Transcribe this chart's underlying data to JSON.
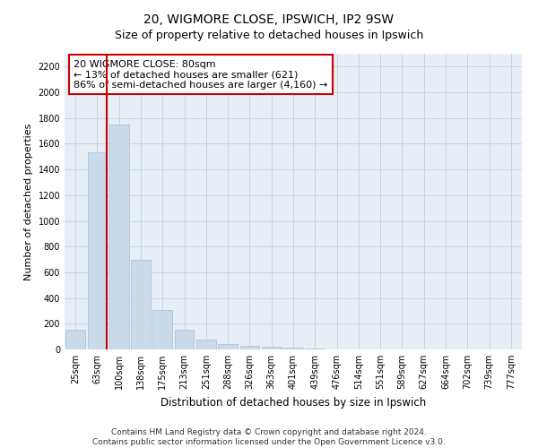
{
  "title": "20, WIGMORE CLOSE, IPSWICH, IP2 9SW",
  "subtitle": "Size of property relative to detached houses in Ipswich",
  "xlabel": "Distribution of detached houses by size in Ipswich",
  "ylabel": "Number of detached properties",
  "categories": [
    "25sqm",
    "63sqm",
    "100sqm",
    "138sqm",
    "175sqm",
    "213sqm",
    "251sqm",
    "288sqm",
    "326sqm",
    "363sqm",
    "401sqm",
    "439sqm",
    "476sqm",
    "514sqm",
    "551sqm",
    "589sqm",
    "627sqm",
    "664sqm",
    "702sqm",
    "739sqm",
    "777sqm"
  ],
  "values": [
    150,
    1530,
    1750,
    700,
    310,
    155,
    80,
    40,
    25,
    20,
    12,
    5,
    3,
    2,
    1,
    1,
    0,
    0,
    0,
    0,
    0
  ],
  "bar_color": "#c9daea",
  "bar_edge_color": "#aabdd0",
  "property_line_x": 1.42,
  "annotation_text": "20 WIGMORE CLOSE: 80sqm\n← 13% of detached houses are smaller (621)\n86% of semi-detached houses are larger (4,160) →",
  "annotation_box_color": "#ffffff",
  "annotation_box_edge_color": "#cc0000",
  "red_line_color": "#cc0000",
  "footer_line1": "Contains HM Land Registry data © Crown copyright and database right 2024.",
  "footer_line2": "Contains public sector information licensed under the Open Government Licence v3.0.",
  "ylim": [
    0,
    2300
  ],
  "yticks": [
    0,
    200,
    400,
    600,
    800,
    1000,
    1200,
    1400,
    1600,
    1800,
    2000,
    2200
  ],
  "grid_color": "#c8d4e4",
  "bg_color": "#e8eef6",
  "title_fontsize": 10,
  "subtitle_fontsize": 9,
  "axis_label_fontsize": 8,
  "tick_fontsize": 7,
  "footer_fontsize": 6.5,
  "annotation_fontsize": 8
}
